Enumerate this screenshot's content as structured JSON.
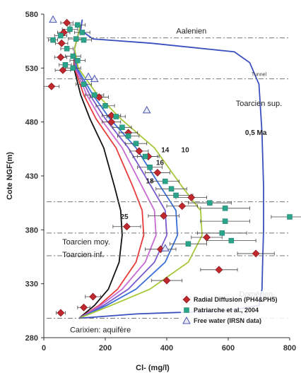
{
  "chart_data": {
    "type": "scatter",
    "xlabel": "Cl- (mg/l)",
    "ylabel": "Cote NGF(m)",
    "xlim": [
      0,
      800
    ],
    "ylim": [
      280,
      580
    ],
    "x_ticks": [
      "0",
      "200",
      "400",
      "600",
      "800"
    ],
    "y_ticks": [
      "280",
      "330",
      "380",
      "430",
      "480",
      "530",
      "580"
    ],
    "grid": false,
    "legend_position": "bottom-right",
    "series": [
      {
        "name": "Radial Diffusion (PH4&PH5)",
        "marker": "diamond",
        "color": "#c0282e",
        "points": [
          {
            "x": 75,
            "y": 572,
            "xerr": 20
          },
          {
            "x": 65,
            "y": 563,
            "xerr": 20
          },
          {
            "x": 58,
            "y": 553,
            "xerr": 20
          },
          {
            "x": 55,
            "y": 540,
            "xerr": 20
          },
          {
            "x": 62,
            "y": 528,
            "xerr": 25
          },
          {
            "x": 25,
            "y": 513,
            "xerr": 25
          },
          {
            "x": 180,
            "y": 503,
            "xerr": 30
          },
          {
            "x": 220,
            "y": 486,
            "xerr": 30
          },
          {
            "x": 220,
            "y": 480,
            "xerr": 30
          },
          {
            "x": 275,
            "y": 470,
            "xerr": 30
          },
          {
            "x": 310,
            "y": 453,
            "xerr": 30
          },
          {
            "x": 340,
            "y": 448,
            "xerr": 35
          },
          {
            "x": 370,
            "y": 433,
            "xerr": 40
          },
          {
            "x": 480,
            "y": 410,
            "xerr": 50
          },
          {
            "x": 450,
            "y": 402,
            "xerr": 50
          },
          {
            "x": 390,
            "y": 393,
            "xerr": 50
          },
          {
            "x": 270,
            "y": 383,
            "xerr": 45
          },
          {
            "x": 530,
            "y": 373,
            "xerr": 50
          },
          {
            "x": 380,
            "y": 362,
            "xerr": 50
          },
          {
            "x": 690,
            "y": 358,
            "xerr": 60
          },
          {
            "x": 570,
            "y": 343,
            "xerr": 60
          },
          {
            "x": 400,
            "y": 333,
            "xerr": 50
          },
          {
            "x": 160,
            "y": 318,
            "xerr": 25
          },
          {
            "x": 130,
            "y": 308,
            "xerr": 20
          },
          {
            "x": 55,
            "y": 303,
            "xerr": 15
          }
        ]
      },
      {
        "name": "Patriarche et al., 2004",
        "marker": "square",
        "color": "#2aa48a",
        "points": [
          {
            "x": 110,
            "y": 570,
            "xerr": 25
          },
          {
            "x": 85,
            "y": 566,
            "xerr": 25
          },
          {
            "x": 125,
            "y": 563,
            "xerr": 25
          },
          {
            "x": 55,
            "y": 560,
            "xerr": 20
          },
          {
            "x": 105,
            "y": 557,
            "xerr": 25
          },
          {
            "x": 30,
            "y": 556,
            "xerr": 15
          },
          {
            "x": 130,
            "y": 556,
            "xerr": 25
          },
          {
            "x": 75,
            "y": 548,
            "xerr": 20
          },
          {
            "x": 95,
            "y": 541,
            "xerr": 25
          },
          {
            "x": 110,
            "y": 537,
            "xerr": 25
          },
          {
            "x": 70,
            "y": 533,
            "xerr": 20
          },
          {
            "x": 95,
            "y": 530,
            "xerr": 25
          },
          {
            "x": 130,
            "y": 515,
            "xerr": 25
          },
          {
            "x": 165,
            "y": 505,
            "xerr": 30
          },
          {
            "x": 200,
            "y": 495,
            "xerr": 30
          },
          {
            "x": 235,
            "y": 485,
            "xerr": 30
          },
          {
            "x": 255,
            "y": 475,
            "xerr": 30
          },
          {
            "x": 275,
            "y": 467,
            "xerr": 35
          },
          {
            "x": 300,
            "y": 460,
            "xerr": 35
          },
          {
            "x": 330,
            "y": 448,
            "xerr": 40
          },
          {
            "x": 345,
            "y": 438,
            "xerr": 40
          },
          {
            "x": 395,
            "y": 425,
            "xerr": 45
          },
          {
            "x": 415,
            "y": 418,
            "xerr": 50
          },
          {
            "x": 430,
            "y": 412,
            "xerr": 55
          },
          {
            "x": 540,
            "y": 405,
            "xerr": 70
          },
          {
            "x": 590,
            "y": 400,
            "xerr": 80
          },
          {
            "x": 800,
            "y": 392,
            "xerr": 60
          },
          {
            "x": 590,
            "y": 388,
            "xerr": 80
          },
          {
            "x": 580,
            "y": 377,
            "xerr": 80
          },
          {
            "x": 610,
            "y": 370,
            "xerr": 80
          },
          {
            "x": 470,
            "y": 367,
            "xerr": 60
          }
        ]
      },
      {
        "name": "Free water (IRSN data)",
        "marker": "triangle",
        "color": "#4a56b0",
        "points": [
          {
            "x": 30,
            "y": 575
          },
          {
            "x": 145,
            "y": 522
          },
          {
            "x": 165,
            "y": 520
          },
          {
            "x": 335,
            "y": 491
          },
          {
            "x": 395,
            "y": 363
          }
        ]
      }
    ],
    "curves": [
      {
        "label": "25",
        "color": "#111111",
        "points": [
          [
            120,
            570
          ],
          [
            100,
            548
          ],
          [
            98,
            530
          ],
          [
            120,
            505
          ],
          [
            150,
            483
          ],
          [
            195,
            456
          ],
          [
            230,
            420
          ],
          [
            250,
            398
          ],
          [
            255,
            375
          ],
          [
            245,
            350
          ],
          [
            210,
            325
          ],
          [
            165,
            310
          ],
          [
            115,
            298
          ]
        ]
      },
      {
        "label": "18",
        "color": "#e83a3a",
        "points": [
          [
            120,
            570
          ],
          [
            100,
            548
          ],
          [
            100,
            530
          ],
          [
            130,
            505
          ],
          [
            170,
            483
          ],
          [
            235,
            456
          ],
          [
            290,
            420
          ],
          [
            320,
            398
          ],
          [
            325,
            375
          ],
          [
            300,
            350
          ],
          [
            240,
            325
          ],
          [
            180,
            310
          ],
          [
            115,
            298
          ]
        ]
      },
      {
        "label": "16",
        "color": "#c86bd2",
        "points": [
          [
            120,
            570
          ],
          [
            100,
            548
          ],
          [
            102,
            530
          ],
          [
            140,
            505
          ],
          [
            185,
            483
          ],
          [
            255,
            456
          ],
          [
            320,
            420
          ],
          [
            360,
            398
          ],
          [
            365,
            375
          ],
          [
            330,
            350
          ],
          [
            255,
            325
          ],
          [
            185,
            310
          ],
          [
            115,
            298
          ]
        ]
      },
      {
        "label": "14",
        "color": "#7a5acd",
        "points": [
          [
            120,
            570
          ],
          [
            100,
            548
          ],
          [
            105,
            530
          ],
          [
            150,
            505
          ],
          [
            200,
            483
          ],
          [
            275,
            456
          ],
          [
            350,
            420
          ],
          [
            395,
            398
          ],
          [
            400,
            375
          ],
          [
            360,
            350
          ],
          [
            275,
            325
          ],
          [
            195,
            310
          ],
          [
            115,
            298
          ]
        ]
      },
      {
        "label": "",
        "color": "#3a6fd8",
        "points": [
          [
            120,
            570
          ],
          [
            100,
            548
          ],
          [
            108,
            530
          ],
          [
            160,
            505
          ],
          [
            215,
            483
          ],
          [
            300,
            456
          ],
          [
            380,
            420
          ],
          [
            430,
            398
          ],
          [
            435,
            375
          ],
          [
            395,
            350
          ],
          [
            300,
            325
          ],
          [
            205,
            310
          ],
          [
            115,
            298
          ]
        ]
      },
      {
        "label": "10",
        "color": "#a8c83a",
        "points": [
          [
            120,
            570
          ],
          [
            100,
            548
          ],
          [
            112,
            530
          ],
          [
            175,
            505
          ],
          [
            250,
            483
          ],
          [
            360,
            456
          ],
          [
            450,
            420
          ],
          [
            510,
            398
          ],
          [
            515,
            375
          ],
          [
            470,
            350
          ],
          [
            345,
            325
          ],
          [
            220,
            310
          ],
          [
            115,
            298
          ]
        ]
      },
      {
        "label": "0,5 Ma",
        "color": "#3a4fbf",
        "points": [
          [
            125,
            575
          ],
          [
            120,
            565
          ],
          [
            160,
            557
          ],
          [
            350,
            553
          ],
          [
            620,
            545
          ],
          [
            670,
            535
          ],
          [
            700,
            515
          ],
          [
            710,
            470
          ],
          [
            715,
            420
          ],
          [
            715,
            380
          ],
          [
            712,
            350
          ],
          [
            710,
            325
          ],
          [
            700,
            310
          ],
          [
            600,
            305
          ],
          [
            300,
            302
          ],
          [
            115,
            298
          ]
        ]
      }
    ],
    "boundaries": [
      {
        "y": 558,
        "label": "Aalenien"
      },
      {
        "y": 520,
        "label": "Tunnel"
      },
      {
        "y": 406,
        "label": ""
      },
      {
        "y": 377,
        "label": "Toarcien moy."
      },
      {
        "y": 356,
        "label": "Toarcien inf."
      },
      {
        "y": 298,
        "label": "Carixien: aquifère"
      }
    ],
    "annotations": [
      {
        "text": "Toarcien sup.",
        "x": 700,
        "y": 495
      },
      {
        "text": "Domérien",
        "x": 690,
        "y": 318
      }
    ]
  }
}
